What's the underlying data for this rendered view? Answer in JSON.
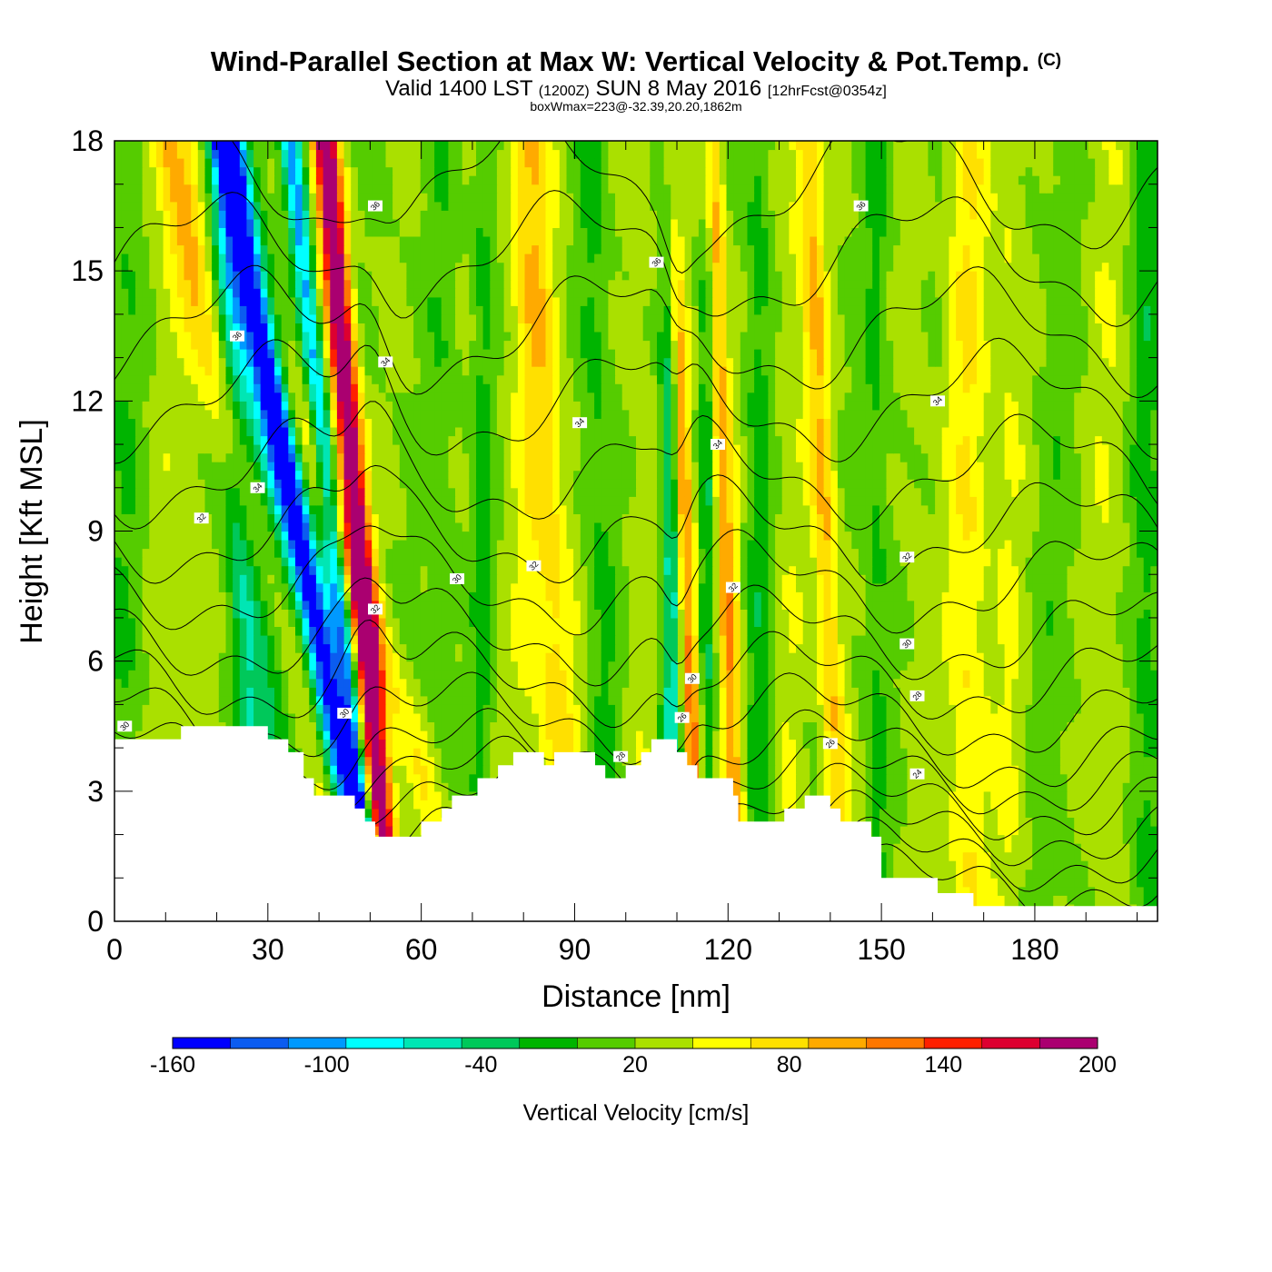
{
  "title": {
    "main": "Wind-Parallel Section at Max W: Vertical Velocity & Pot.Temp.",
    "copyright": "(C)",
    "valid_prefix": "Valid 1400 LST",
    "valid_utc": "(1200Z)",
    "valid_date": "SUN 8 May 2016",
    "forecast": "[12hrFcst@0354z]",
    "box_info": "boxWmax=223@-32.39,20.20,1862m"
  },
  "colors": {
    "levels": [
      "#0000ff",
      "#0b5cf0",
      "#0099ff",
      "#00ffff",
      "#00e6b4",
      "#00c85a",
      "#00b400",
      "#55cc00",
      "#aae000",
      "#ffff00",
      "#ffe000",
      "#ffaa00",
      "#ff7700",
      "#ff2000",
      "#dd0030",
      "#aa0070"
    ],
    "terrain": "#ffffff",
    "frame": "#000000"
  },
  "chart_data": {
    "type": "heatmap",
    "title": "Wind-Parallel Section at Max W: Vertical Velocity & Pot.Temp.",
    "xlabel": "Distance [nm]",
    "ylabel": "Height [Kft MSL]",
    "xlim": [
      0,
      204
    ],
    "ylim": [
      0,
      18
    ],
    "x_ticks": [
      "0",
      "30",
      "60",
      "90",
      "120",
      "150",
      "180"
    ],
    "x_tick_values": [
      0,
      30,
      60,
      90,
      120,
      150,
      180
    ],
    "y_ticks": [
      "0",
      "3",
      "6",
      "9",
      "12",
      "15",
      "18"
    ],
    "y_tick_values": [
      0,
      3,
      6,
      9,
      12,
      15,
      18
    ],
    "colorbar": {
      "label": "Vertical Velocity [cm/s]",
      "range": [
        -160,
        200
      ],
      "step": 20,
      "tick_labels": [
        "-160",
        "-100",
        "-40",
        "20",
        "80",
        "140",
        "200"
      ],
      "tick_values": [
        -160,
        -100,
        -40,
        20,
        80,
        140,
        200
      ]
    },
    "vertical_velocity_features": [
      {
        "x": 2,
        "w": 5,
        "tilt": 0,
        "amp": -20
      },
      {
        "x": 8,
        "w": 5,
        "tilt": 0,
        "amp": 10
      },
      {
        "x": 16,
        "w": 4,
        "tilt": 0,
        "amp": 12
      },
      {
        "x": 26,
        "w": 3,
        "tilt": 0.3,
        "amp": -45
      },
      {
        "x": 34,
        "w": 6,
        "tilt": 0.9,
        "amp": -60
      },
      {
        "x": 44,
        "w": 3,
        "tilt": 1.6,
        "amp": -150
      },
      {
        "x": 38,
        "w": 4,
        "tilt": 2.0,
        "amp": 65
      },
      {
        "x": 51,
        "w": 2.5,
        "tilt": 0.7,
        "amp": 175
      },
      {
        "x": 58,
        "w": 4,
        "tilt": 2.8,
        "amp": 38
      },
      {
        "x": 47,
        "w": 2,
        "tilt": 0.9,
        "amp": -105
      },
      {
        "x": 64,
        "w": 3,
        "tilt": 0,
        "amp": -15
      },
      {
        "x": 72,
        "w": 2,
        "tilt": 0,
        "amp": -25
      },
      {
        "x": 80,
        "w": 3.5,
        "tilt": 0,
        "amp": 15
      },
      {
        "x": 87,
        "w": 4,
        "tilt": 0.4,
        "amp": 50
      },
      {
        "x": 96,
        "w": 3,
        "tilt": 0.2,
        "amp": -25
      },
      {
        "x": 103,
        "w": 3,
        "tilt": 0,
        "amp": 12
      },
      {
        "x": 109,
        "w": 2,
        "tilt": 0,
        "amp": -75
      },
      {
        "x": 113,
        "w": 1.8,
        "tilt": 0.3,
        "amp": 95
      },
      {
        "x": 116,
        "w": 1.5,
        "tilt": 0,
        "amp": -40
      },
      {
        "x": 121,
        "w": 2,
        "tilt": 0.3,
        "amp": 75
      },
      {
        "x": 126,
        "w": 2.5,
        "tilt": 0,
        "amp": -30
      },
      {
        "x": 132,
        "w": 3,
        "tilt": 0,
        "amp": 15
      },
      {
        "x": 141,
        "w": 2.5,
        "tilt": 0.4,
        "amp": 60
      },
      {
        "x": 149,
        "w": 2.5,
        "tilt": 0,
        "amp": -25
      },
      {
        "x": 157,
        "w": 3,
        "tilt": 0,
        "amp": 10
      },
      {
        "x": 167,
        "w": 4,
        "tilt": 0,
        "amp": 40
      },
      {
        "x": 175,
        "w": 3,
        "tilt": 0,
        "amp": 20
      },
      {
        "x": 184,
        "w": 4,
        "tilt": 0,
        "amp": -10
      },
      {
        "x": 194,
        "w": 4,
        "tilt": 0,
        "amp": 15
      },
      {
        "x": 202,
        "w": 3,
        "tilt": 0,
        "amp": -30
      }
    ],
    "terrain_kft": [
      [
        0,
        4.2
      ],
      [
        13,
        4.2
      ],
      [
        13,
        4.5
      ],
      [
        30,
        4.5
      ],
      [
        30,
        4.2
      ],
      [
        34,
        4.2
      ],
      [
        34,
        3.9
      ],
      [
        37,
        3.9
      ],
      [
        37,
        3.3
      ],
      [
        39,
        3.3
      ],
      [
        39,
        2.9
      ],
      [
        47,
        2.9
      ],
      [
        47,
        2.6
      ],
      [
        49,
        2.6
      ],
      [
        49,
        2.3
      ],
      [
        51,
        2.3
      ],
      [
        51,
        1.95
      ],
      [
        60,
        1.95
      ],
      [
        60,
        2.3
      ],
      [
        64,
        2.3
      ],
      [
        64,
        2.6
      ],
      [
        66,
        2.6
      ],
      [
        66,
        2.9
      ],
      [
        71,
        2.9
      ],
      [
        71,
        3.3
      ],
      [
        75,
        3.3
      ],
      [
        75,
        3.6
      ],
      [
        78,
        3.6
      ],
      [
        78,
        3.9
      ],
      [
        84,
        3.9
      ],
      [
        84,
        3.6
      ],
      [
        86,
        3.6
      ],
      [
        86,
        3.9
      ],
      [
        94,
        3.9
      ],
      [
        94,
        3.6
      ],
      [
        96,
        3.6
      ],
      [
        96,
        3.3
      ],
      [
        100,
        3.3
      ],
      [
        100,
        3.6
      ],
      [
        103,
        3.6
      ],
      [
        103,
        3.9
      ],
      [
        105,
        3.9
      ],
      [
        105,
        4.2
      ],
      [
        110,
        4.2
      ],
      [
        110,
        3.9
      ],
      [
        112,
        3.9
      ],
      [
        112,
        3.6
      ],
      [
        114,
        3.6
      ],
      [
        114,
        3.3
      ],
      [
        121,
        3.3
      ],
      [
        121,
        2.9
      ],
      [
        122,
        2.9
      ],
      [
        122,
        2.3
      ],
      [
        131,
        2.3
      ],
      [
        131,
        2.6
      ],
      [
        135,
        2.6
      ],
      [
        135,
        2.9
      ],
      [
        140,
        2.9
      ],
      [
        140,
        2.6
      ],
      [
        142,
        2.6
      ],
      [
        142,
        2.3
      ],
      [
        148,
        2.3
      ],
      [
        148,
        1.95
      ],
      [
        150,
        1.95
      ],
      [
        150,
        1.0
      ],
      [
        161,
        1.0
      ],
      [
        161,
        0.65
      ],
      [
        168,
        0.65
      ],
      [
        168,
        0.35
      ],
      [
        204,
        0.35
      ]
    ],
    "theta_contours": [
      {
        "level": 24,
        "base": 0.9
      },
      {
        "level": 25,
        "base": 1.5
      },
      {
        "level": 26,
        "base": 2.1
      },
      {
        "level": 27,
        "base": 2.7
      },
      {
        "level": 28,
        "base": 3.3
      },
      {
        "level": 29,
        "base": 3.9
      },
      {
        "level": 30,
        "base": 4.7
      },
      {
        "level": 31,
        "base": 5.6
      },
      {
        "level": 32,
        "base": 6.6
      },
      {
        "level": 33,
        "base": 7.8
      },
      {
        "level": 34,
        "base": 9.0
      },
      {
        "level": 35,
        "base": 10.4
      },
      {
        "level": 36,
        "base": 12.0
      },
      {
        "level": 37,
        "base": 13.6
      },
      {
        "level": 38,
        "base": 15.3
      },
      {
        "level": 39,
        "base": 17.0
      }
    ],
    "contour_labels": [
      {
        "text": "30",
        "x": 2,
        "y": 4.5
      },
      {
        "text": "32",
        "x": 17,
        "y": 9.3
      },
      {
        "text": "34",
        "x": 28,
        "y": 10.0
      },
      {
        "text": "36",
        "x": 24,
        "y": 13.5
      },
      {
        "text": "36",
        "x": 51,
        "y": 16.5
      },
      {
        "text": "34",
        "x": 53,
        "y": 12.9
      },
      {
        "text": "32",
        "x": 51,
        "y": 7.2
      },
      {
        "text": "30",
        "x": 45,
        "y": 4.8
      },
      {
        "text": "30",
        "x": 67,
        "y": 7.9
      },
      {
        "text": "32",
        "x": 82,
        "y": 8.2
      },
      {
        "text": "34",
        "x": 91,
        "y": 11.5
      },
      {
        "text": "28",
        "x": 99,
        "y": 3.8
      },
      {
        "text": "36",
        "x": 106,
        "y": 15.2
      },
      {
        "text": "34",
        "x": 118,
        "y": 11.0
      },
      {
        "text": "32",
        "x": 121,
        "y": 7.7
      },
      {
        "text": "30",
        "x": 113,
        "y": 5.6
      },
      {
        "text": "26",
        "x": 111,
        "y": 4.7
      },
      {
        "text": "36",
        "x": 146,
        "y": 16.5
      },
      {
        "text": "34",
        "x": 161,
        "y": 12.0
      },
      {
        "text": "32",
        "x": 155,
        "y": 8.4
      },
      {
        "text": "30",
        "x": 155,
        "y": 6.4
      },
      {
        "text": "28",
        "x": 157,
        "y": 5.2
      },
      {
        "text": "26",
        "x": 140,
        "y": 4.1
      },
      {
        "text": "24",
        "x": 157,
        "y": 3.4
      }
    ]
  },
  "xaxis_title": "Distance [nm]",
  "yaxis_title": "Height [Kft MSL]"
}
